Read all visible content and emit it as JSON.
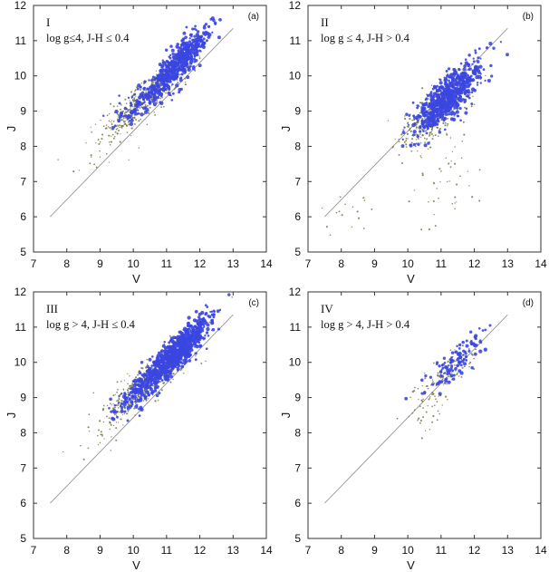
{
  "colors": {
    "blue": "#3b46e0",
    "olive": "#6b6f3c",
    "diagonal": "#888888",
    "frame": "#333333"
  },
  "chart_data": [
    {
      "type": "scatter",
      "panel_label": "(a)",
      "roman": "I",
      "condition": "log g≤4, J-H ≤ 0.4",
      "xlabel": "V",
      "ylabel": "J",
      "xlim": [
        7,
        14
      ],
      "ylim": [
        5,
        12
      ],
      "xticks": [
        "7",
        "8",
        "9",
        "10",
        "11",
        "12",
        "13",
        "14"
      ],
      "yticks": [
        "5",
        "6",
        "7",
        "8",
        "9",
        "10",
        "11",
        "12"
      ],
      "reference_line": {
        "x": [
          7.5,
          13.0
        ],
        "y": [
          6.0,
          11.35
        ]
      },
      "series": [
        {
          "name": "blue",
          "clusters": [
            {
              "cx": 11.4,
              "cy": 10.4,
              "sx": 0.42,
              "sy": 0.48,
              "n": 520,
              "corr": 0.85
            },
            {
              "cx": 10.4,
              "cy": 9.4,
              "sx": 0.45,
              "sy": 0.35,
              "n": 120,
              "corr": 0.8
            }
          ]
        },
        {
          "name": "olive",
          "clusters": [
            {
              "cx": 10.3,
              "cy": 9.3,
              "sx": 0.65,
              "sy": 0.55,
              "n": 420,
              "corr": 0.88
            },
            {
              "cx": 9.0,
              "cy": 8.0,
              "sx": 0.7,
              "sy": 0.7,
              "n": 25,
              "corr": 0.6
            }
          ]
        }
      ]
    },
    {
      "type": "scatter",
      "panel_label": "(b)",
      "roman": "II",
      "condition": "log g ≤ 4, J-H > 0.4",
      "xlabel": "V",
      "ylabel": "J",
      "xlim": [
        7,
        14
      ],
      "ylim": [
        5,
        12
      ],
      "xticks": [
        "7",
        "8",
        "9",
        "10",
        "11",
        "12",
        "13",
        "14"
      ],
      "yticks": [
        "5",
        "6",
        "7",
        "8",
        "9",
        "10",
        "11",
        "12"
      ],
      "reference_line": {
        "x": [
          7.5,
          13.0
        ],
        "y": [
          6.0,
          11.35
        ]
      },
      "series": [
        {
          "name": "blue",
          "clusters": [
            {
              "cx": 11.2,
              "cy": 9.4,
              "sx": 0.5,
              "sy": 0.5,
              "n": 650,
              "corr": 0.8
            }
          ]
        },
        {
          "name": "olive",
          "clusters": [
            {
              "cx": 10.8,
              "cy": 8.9,
              "sx": 0.5,
              "sy": 0.5,
              "n": 420,
              "corr": 0.75
            },
            {
              "cx": 11.2,
              "cy": 7.3,
              "sx": 0.5,
              "sy": 0.8,
              "n": 45,
              "corr": 0.1
            },
            {
              "cx": 8.2,
              "cy": 6.0,
              "sx": 0.6,
              "sy": 0.35,
              "n": 18,
              "corr": 0.5
            }
          ]
        }
      ]
    },
    {
      "type": "scatter",
      "panel_label": "(c)",
      "roman": "III",
      "condition": "log g > 4,  J-H ≤ 0.4",
      "xlabel": "V",
      "ylabel": "J",
      "xlim": [
        7,
        14
      ],
      "ylim": [
        5,
        12
      ],
      "xticks": [
        "7",
        "8",
        "9",
        "10",
        "11",
        "12",
        "13",
        "14"
      ],
      "yticks": [
        "5",
        "6",
        "7",
        "8",
        "9",
        "10",
        "11",
        "12"
      ],
      "reference_line": {
        "x": [
          7.5,
          13.0
        ],
        "y": [
          6.0,
          11.35
        ]
      },
      "series": [
        {
          "name": "blue",
          "clusters": [
            {
              "cx": 11.3,
              "cy": 10.3,
              "sx": 0.5,
              "sy": 0.5,
              "n": 800,
              "corr": 0.88
            },
            {
              "cx": 10.2,
              "cy": 9.2,
              "sx": 0.4,
              "sy": 0.35,
              "n": 150,
              "corr": 0.8
            }
          ]
        },
        {
          "name": "olive",
          "clusters": [
            {
              "cx": 10.4,
              "cy": 9.4,
              "sx": 0.7,
              "sy": 0.6,
              "n": 450,
              "corr": 0.88
            },
            {
              "cx": 8.9,
              "cy": 8.0,
              "sx": 0.5,
              "sy": 0.5,
              "n": 15,
              "corr": 0.6
            }
          ]
        }
      ]
    },
    {
      "type": "scatter",
      "panel_label": "(d)",
      "roman": "IV",
      "condition": "log g > 4, J-H > 0.4",
      "xlabel": "V",
      "ylabel": "J",
      "xlim": [
        7,
        14
      ],
      "ylim": [
        5,
        12
      ],
      "xticks": [
        "7",
        "8",
        "9",
        "10",
        "11",
        "12",
        "13",
        "14"
      ],
      "yticks": [
        "5",
        "6",
        "7",
        "8",
        "9",
        "10",
        "11",
        "12"
      ],
      "reference_line": {
        "x": [
          7.5,
          13.0
        ],
        "y": [
          6.0,
          11.35
        ]
      },
      "series": [
        {
          "name": "blue",
          "clusters": [
            {
              "cx": 11.4,
              "cy": 10.0,
              "sx": 0.45,
              "sy": 0.45,
              "n": 110,
              "corr": 0.85
            }
          ]
        },
        {
          "name": "olive",
          "clusters": [
            {
              "cx": 11.0,
              "cy": 9.5,
              "sx": 0.5,
              "sy": 0.5,
              "n": 110,
              "corr": 0.8
            },
            {
              "cx": 10.5,
              "cy": 8.4,
              "sx": 0.4,
              "sy": 0.4,
              "n": 20,
              "corr": 0.3
            }
          ]
        }
      ]
    }
  ]
}
